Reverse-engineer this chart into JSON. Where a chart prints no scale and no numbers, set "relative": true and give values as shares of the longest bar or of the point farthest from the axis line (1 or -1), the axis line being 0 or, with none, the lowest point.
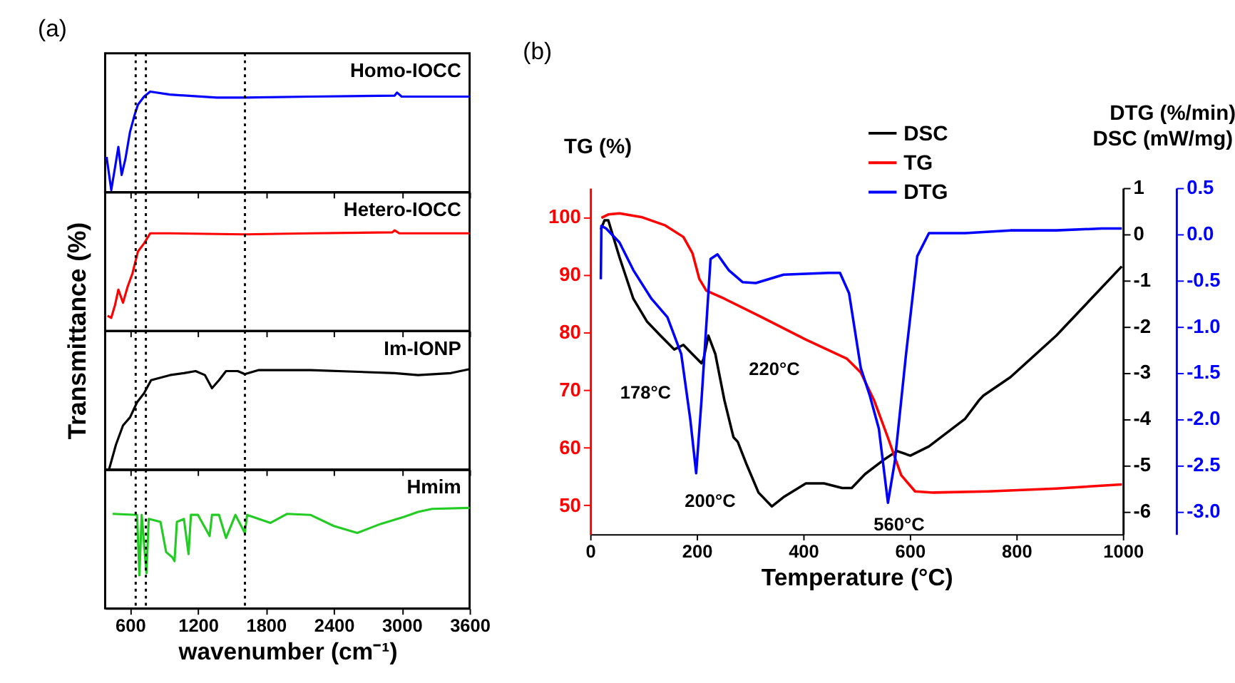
{
  "chart_data": [
    {
      "type": "line",
      "relative": true,
      "annotations": [
        "(a)"
      ],
      "ylabel": "Transmittance (%)",
      "xlim": [
        380,
        3600
      ],
      "xticks": [
        600,
        1200,
        1800,
        2400,
        3000,
        3600
      ],
      "tick_labels": false,
      "grid": false,
      "marker": "none",
      "line_style": "solid",
      "ref_lines": [
        {
          "axis": "x",
          "value": 650,
          "color": "#000000",
          "line_style": "dotted"
        },
        {
          "axis": "x",
          "value": 740,
          "color": "#000000",
          "line_style": "dotted"
        },
        {
          "axis": "x",
          "value": 1615,
          "color": "#000000",
          "line_style": "dotted"
        }
      ],
      "series": [
        {
          "name": "Homo-IOCC",
          "color": "#0000ff",
          "x": [
            393,
            434,
            468,
            497,
            526,
            559,
            600,
            641,
            670,
            724,
            778,
            952,
            1365,
            1614,
            2193,
            2938,
            2959,
            3000,
            3600
          ],
          "values": [
            0.35,
            0.02,
            0.25,
            0.45,
            0.17,
            0.33,
            0.6,
            0.77,
            0.87,
            0.95,
            1.0,
            0.97,
            0.94,
            0.94,
            0.95,
            0.96,
            0.99,
            0.95,
            0.95
          ]
        }
      ]
    },
    {
      "type": "line",
      "relative": true,
      "xlim": [
        380,
        3600
      ],
      "xticks": [
        600,
        1200,
        1800,
        2400,
        3000,
        3600
      ],
      "tick_labels": false,
      "grid": false,
      "marker": "none",
      "line_style": "solid",
      "ref_lines": [
        {
          "axis": "x",
          "value": 650,
          "color": "#000000",
          "line_style": "dotted"
        },
        {
          "axis": "x",
          "value": 740,
          "color": "#000000",
          "line_style": "dotted"
        },
        {
          "axis": "x",
          "value": 1615,
          "color": "#000000",
          "line_style": "dotted"
        }
      ],
      "series": [
        {
          "name": "Hetero-IOCC",
          "color": "#ff0000",
          "x": [
            401,
            434,
            468,
            497,
            538,
            579,
            621,
            670,
            724,
            778,
            952,
            1614,
            2193,
            2917,
            2938,
            2979,
            3600
          ],
          "values": [
            0.15,
            0.13,
            0.26,
            0.41,
            0.28,
            0.44,
            0.57,
            0.79,
            0.87,
            0.97,
            0.97,
            0.96,
            0.97,
            0.98,
            1.0,
            0.97,
            0.97
          ]
        }
      ]
    },
    {
      "type": "line",
      "relative": true,
      "xlim": [
        380,
        3600
      ],
      "xticks": [
        600,
        1200,
        1800,
        2400,
        3000,
        3600
      ],
      "tick_labels": false,
      "grid": false,
      "marker": "none",
      "line_style": "solid",
      "ref_lines": [
        {
          "axis": "x",
          "value": 650,
          "color": "#000000",
          "line_style": "dotted"
        },
        {
          "axis": "x",
          "value": 740,
          "color": "#000000",
          "line_style": "dotted"
        },
        {
          "axis": "x",
          "value": 1615,
          "color": "#000000",
          "line_style": "dotted"
        }
      ],
      "series": [
        {
          "name": "Im-IONP",
          "color": "#000000",
          "x": [
            414,
            476,
            538,
            600,
            662,
            724,
            786,
            952,
            1076,
            1179,
            1262,
            1324,
            1386,
            1448,
            1552,
            1614,
            1738,
            2193,
            2938,
            3145,
            3435,
            3600
          ],
          "values": [
            0,
            0.25,
            0.44,
            0.52,
            0.67,
            0.76,
            0.89,
            0.94,
            0.96,
            0.98,
            0.94,
            0.81,
            0.89,
            0.98,
            0.98,
            0.95,
            0.99,
            0.99,
            0.96,
            0.94,
            0.96,
            1.0
          ]
        }
      ]
    },
    {
      "type": "line",
      "relative": true,
      "xlabel": "wavenumber (cm⁻¹)",
      "xlim": [
        380,
        3600
      ],
      "xticks": [
        600,
        1200,
        1800,
        2400,
        3000,
        3600
      ],
      "tick_labels": "x",
      "grid": false,
      "marker": "none",
      "line_style": "solid",
      "ref_lines": [
        {
          "axis": "x",
          "value": 650,
          "color": "#000000",
          "line_style": "dotted"
        },
        {
          "axis": "x",
          "value": 740,
          "color": "#000000",
          "line_style": "dotted"
        },
        {
          "axis": "x",
          "value": 1615,
          "color": "#000000",
          "line_style": "dotted"
        }
      ],
      "series": [
        {
          "name": "Hmim",
          "color": "#22cc22",
          "x": [
            447,
            662,
            683,
            703,
            745,
            765,
            869,
            919,
            972,
            993,
            1014,
            1076,
            1117,
            1138,
            1200,
            1303,
            1324,
            1386,
            1448,
            1531,
            1614,
            1634,
            1841,
            1986,
            2193,
            2400,
            2607,
            2813,
            3020,
            3145,
            3269,
            3600
          ],
          "values": [
            0.94,
            0.93,
            0.33,
            0.93,
            0.35,
            0.89,
            0.86,
            0.56,
            0.51,
            0.47,
            0.86,
            0.89,
            0.54,
            0.93,
            0.93,
            0.72,
            0.93,
            0.93,
            0.7,
            0.93,
            0.75,
            0.93,
            0.85,
            0.94,
            0.93,
            0.82,
            0.75,
            0.84,
            0.91,
            0.96,
            0.99,
            1.0
          ]
        }
      ]
    },
    {
      "type": "line",
      "xlabel": "Temperature (°C)",
      "ylabel": "TG (%)",
      "y2label": "DSC (mW/mg)",
      "y3label": "DTG (%/min)",
      "xlim": [
        0,
        1000
      ],
      "xticks": [
        0,
        200,
        400,
        600,
        800,
        1000
      ],
      "ylim": [
        45,
        105
      ],
      "yticks": [
        50,
        60,
        70,
        80,
        90,
        100
      ],
      "y2lim": [
        -6.5,
        1
      ],
      "y2ticks": [
        -6,
        -5,
        -4,
        -3,
        -2,
        -1,
        0,
        1
      ],
      "y3lim": [
        -3.25,
        0.5
      ],
      "y3ticks": [
        {
          "value": -3,
          "label": "-3.0"
        },
        -2.5,
        {
          "value": -2,
          "label": "-2.0"
        },
        -1.5,
        {
          "value": -1,
          "label": "-1.0"
        },
        -0.5,
        {
          "value": 0,
          "label": "0.0"
        },
        0.5
      ],
      "grid": false,
      "legend": "top",
      "marker": "none",
      "line_style": "solid",
      "annotations": [
        "(b)",
        {
          "text": "178°C",
          "x": 162,
          "y": 74.8
        },
        {
          "text": "220°C",
          "x": 230,
          "y": 77.9
        },
        {
          "text": "200°C",
          "x": 199,
          "y": 55.6
        },
        {
          "text": "560°C",
          "x": 559,
          "y": 50.3
        }
      ],
      "series": [
        {
          "name": "DSC",
          "color": "#000000",
          "axis": "y2",
          "x": [
            20,
            27,
            34,
            55,
            81,
            107,
            132,
            158,
            175,
            192,
            209,
            213,
            222,
            235,
            252,
            269,
            277,
            294,
            316,
            341,
            363,
            405,
            439,
            473,
            491,
            516,
            550,
            576,
            601,
            636,
            704,
            730,
            738,
            789,
            875,
            998
          ],
          "values": [
            0.1,
            0.3,
            0.3,
            -0.5,
            -1.4,
            -1.9,
            -2.2,
            -2.5,
            -2.4,
            -2.6,
            -2.8,
            -2.7,
            -2.2,
            -2.6,
            -3.6,
            -4.4,
            -4.5,
            -5.0,
            -5.6,
            -5.9,
            -5.7,
            -5.4,
            -5.4,
            -5.5,
            -5.5,
            -5.2,
            -4.9,
            -4.7,
            -4.8,
            -4.6,
            -4.0,
            -3.6,
            -3.5,
            -3.1,
            -2.2,
            -0.7
          ]
        },
        {
          "name": "TG",
          "color": "#ff0000",
          "x": [
            21,
            34,
            55,
            98,
            141,
            175,
            192,
            205,
            218,
            252,
            320,
            405,
            482,
            508,
            533,
            559,
            584,
            610,
            644,
            747,
            875,
            998
          ],
          "values": [
            99.8,
            100.4,
            100.6,
            99.9,
            98.5,
            96.5,
            93.7,
            89.2,
            87.2,
            85.8,
            82.7,
            78.7,
            75.4,
            73.0,
            68.2,
            61.7,
            55.2,
            52.4,
            52.2,
            52.4,
            52.9,
            53.6
          ]
        },
        {
          "name": "DTG",
          "color": "#0000ff",
          "axis": "y3",
          "x": [
            20,
            21,
            30,
            55,
            81,
            115,
            145,
            171,
            188,
            199,
            209,
            226,
            239,
            260,
            286,
            311,
            363,
            448,
            469,
            486,
            508,
            525,
            542,
            559,
            572,
            593,
            614,
            636,
            704,
            789,
            875,
            960,
            998
          ],
          "values": [
            -0.49,
            0.09,
            0.06,
            -0.09,
            -0.39,
            -0.7,
            -0.9,
            -1.3,
            -2.01,
            -2.59,
            -1.8,
            -0.27,
            -0.22,
            -0.39,
            -0.52,
            -0.53,
            -0.44,
            -0.42,
            -0.42,
            -0.64,
            -1.45,
            -1.75,
            -2.11,
            -2.91,
            -2.46,
            -1.3,
            -0.24,
            0.01,
            0.01,
            0.04,
            0.04,
            0.06,
            0.06
          ]
        }
      ]
    }
  ]
}
